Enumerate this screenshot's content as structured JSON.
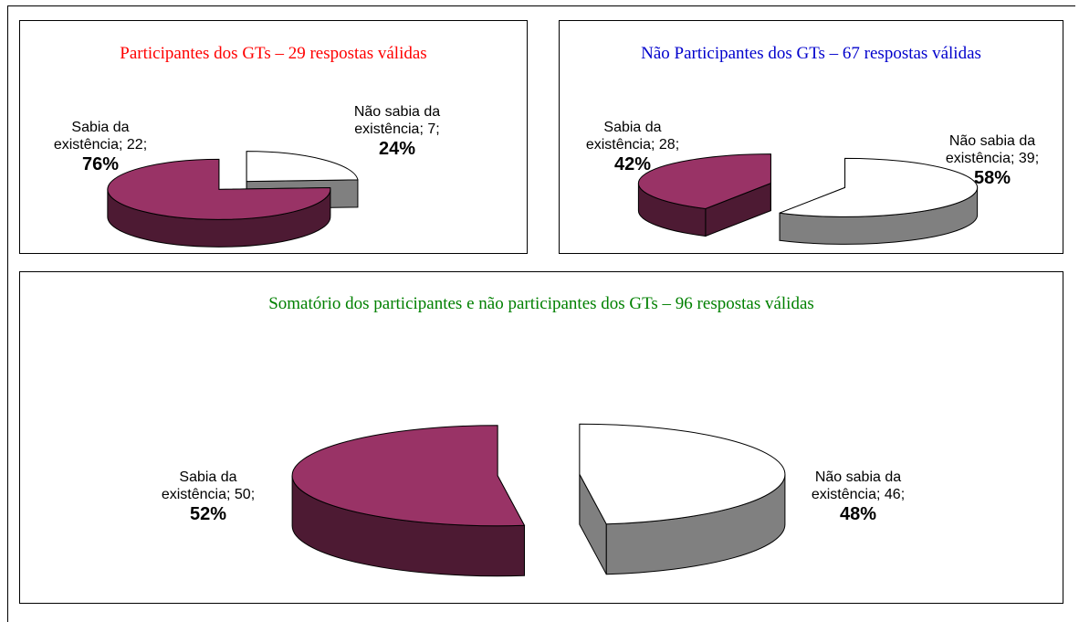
{
  "chart_data": [
    {
      "type": "pie",
      "title": "Participantes dos GTs – 29 respostas válidas",
      "title_color": "#ff0000",
      "categories": [
        "Sabia da existência",
        "Não sabia da existência"
      ],
      "values": [
        22,
        7
      ],
      "percent_labels": [
        "76%",
        "24%"
      ],
      "label_separator": ";",
      "colors": [
        "#993366",
        "#ffffff"
      ],
      "side_colors": [
        "#4d1a33",
        "#808080"
      ]
    },
    {
      "type": "pie",
      "title": "Não Participantes dos GTs – 67 respostas válidas",
      "title_color": "#0000cc",
      "categories": [
        "Sabia da existência",
        "Não sabia da existência"
      ],
      "values": [
        28,
        39
      ],
      "percent_labels": [
        "42%",
        "58%"
      ],
      "label_separator": ";",
      "colors": [
        "#993366",
        "#ffffff"
      ],
      "side_colors": [
        "#4d1a33",
        "#808080"
      ]
    },
    {
      "type": "pie",
      "title": "Somatório dos participantes e não participantes dos GTs – 96 respostas válidas",
      "title_color": "#008000",
      "categories": [
        "Sabia da existência",
        "Não sabia da existência"
      ],
      "values": [
        50,
        46
      ],
      "percent_labels": [
        "52%",
        "48%"
      ],
      "label_separator": ";",
      "colors": [
        "#993366",
        "#ffffff"
      ],
      "side_colors": [
        "#4d1a33",
        "#808080"
      ]
    }
  ]
}
